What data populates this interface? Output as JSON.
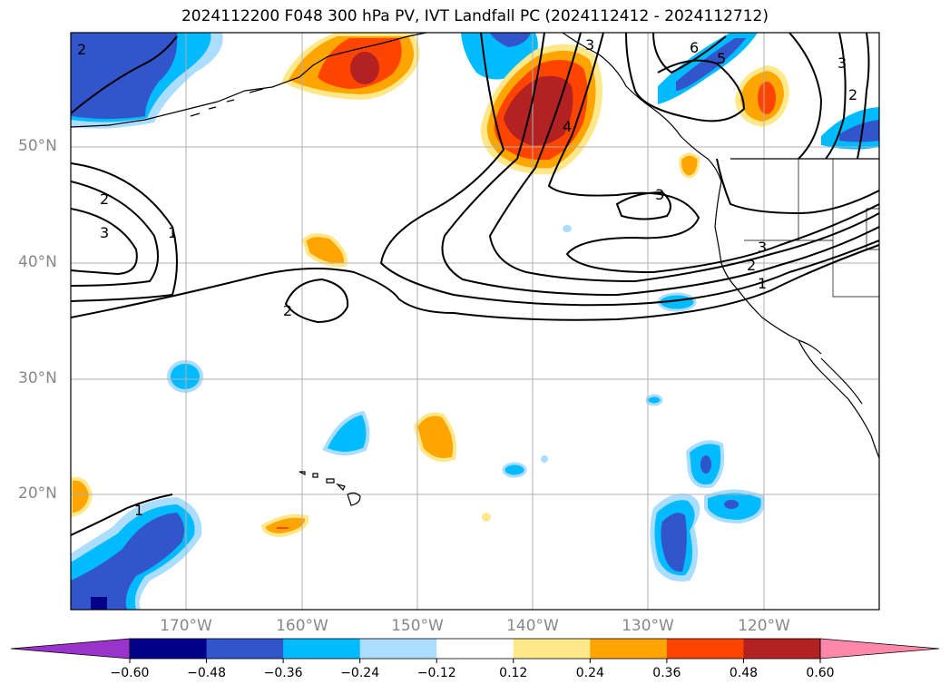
{
  "title": "2024112200 F048 300 hPa PV, IVT Landfall PC (2024112412 - 2024112712)",
  "lat_labels": [
    "50°N",
    "40°N",
    "30°N",
    "20°N"
  ],
  "lon_labels": [
    "170°W",
    "160°W",
    "150°W",
    "140°W",
    "130°W",
    "120°W"
  ],
  "colorbar": {
    "ticks": [
      "−0.60",
      "−0.48",
      "−0.36",
      "−0.24",
      "−0.12",
      "0.12",
      "0.24",
      "0.36",
      "0.48",
      "0.60"
    ],
    "colors": [
      "#9933cc",
      "#000088",
      "#3355cc",
      "#00bbff",
      "#aaddff",
      "#ffffff",
      "#ffe88a",
      "#ffa500",
      "#ff4400",
      "#b22222",
      "#ff88aa"
    ]
  },
  "contour_labels": [
    "2",
    "3",
    "1",
    "2",
    "3",
    "4",
    "5",
    "6",
    "3",
    "2",
    "3",
    "2",
    "3",
    "2",
    "1",
    "1"
  ],
  "colors": {
    "grid": "#b0b0b0",
    "coast": "#000000",
    "contour": "#000000"
  }
}
